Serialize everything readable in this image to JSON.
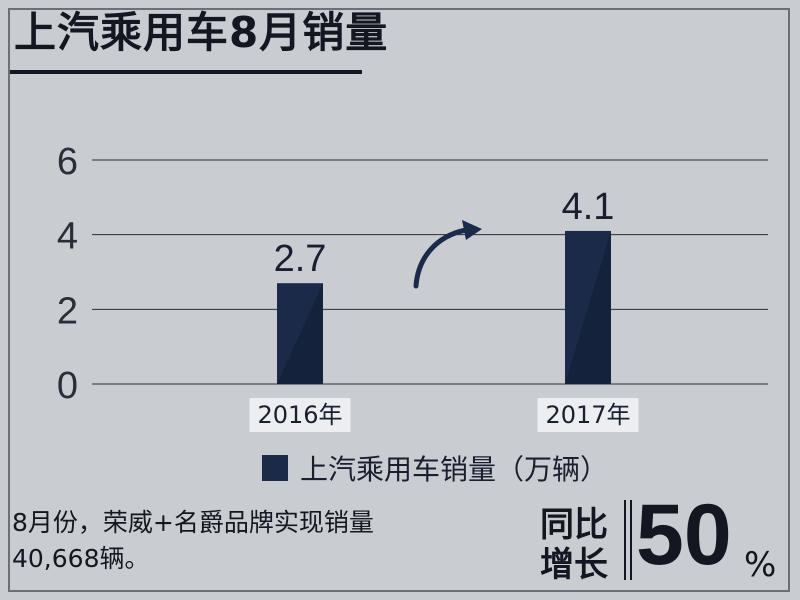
{
  "chart_data": {
    "type": "bar",
    "title": "上汽乘用车8月销量",
    "categories": [
      "2016年",
      "2017年"
    ],
    "series": [
      {
        "name": "上汽乘用车销量（万辆）",
        "values": [
          2.7,
          4.1
        ]
      }
    ],
    "value_labels": [
      "2.7",
      "4.1"
    ],
    "ylim": [
      0,
      6
    ],
    "yticks": [
      0,
      2,
      4,
      6
    ],
    "grid": true,
    "legend_position": "bottom-center",
    "bar_color": "#1a2a48",
    "arrow_color": "#1a2a48"
  },
  "note": {
    "line1": "8月份，荣威+名爵品牌实现销量",
    "line2": "40,668辆。"
  },
  "growth": {
    "label_line1": "同比",
    "label_line2": "增长",
    "value": "50",
    "unit": "%"
  }
}
